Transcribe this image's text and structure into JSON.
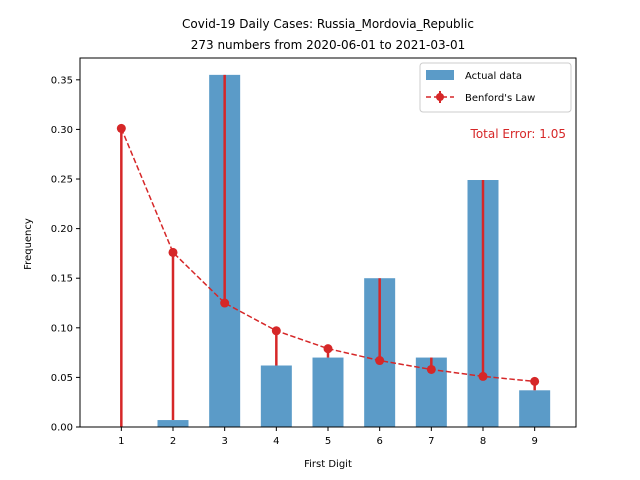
{
  "chart_data": {
    "type": "bar",
    "title": "Covid-19 Daily Cases: Russia_Mordovia_Republic",
    "subtitle": "273 numbers from 2020-06-01 to 2021-03-01",
    "xlabel": "First Digit",
    "ylabel": "Frequency",
    "categories": [
      "1",
      "2",
      "3",
      "4",
      "5",
      "6",
      "7",
      "8",
      "9"
    ],
    "x": [
      1,
      2,
      3,
      4,
      5,
      6,
      7,
      8,
      9
    ],
    "ylim": [
      0,
      0.372
    ],
    "yticks": [
      0.0,
      0.05,
      0.1,
      0.15,
      0.2,
      0.25,
      0.3,
      0.35
    ],
    "ytick_labels": [
      "0.00",
      "0.05",
      "0.10",
      "0.15",
      "0.20",
      "0.25",
      "0.30",
      "0.35"
    ],
    "series": [
      {
        "name": "Actual data",
        "kind": "bar",
        "color": "#5b9bc8",
        "values": [
          0.0,
          0.007,
          0.355,
          0.062,
          0.07,
          0.15,
          0.07,
          0.249,
          0.037
        ]
      },
      {
        "name": "Benford's Law",
        "kind": "line-dashed-markers",
        "color": "#d62728",
        "values": [
          0.301,
          0.176,
          0.125,
          0.097,
          0.079,
          0.067,
          0.058,
          0.051,
          0.046
        ]
      }
    ],
    "legend": {
      "position": "top-right"
    },
    "annotation": {
      "text": "Total Error: 1.05",
      "color": "#d62728"
    },
    "grid": false
  }
}
